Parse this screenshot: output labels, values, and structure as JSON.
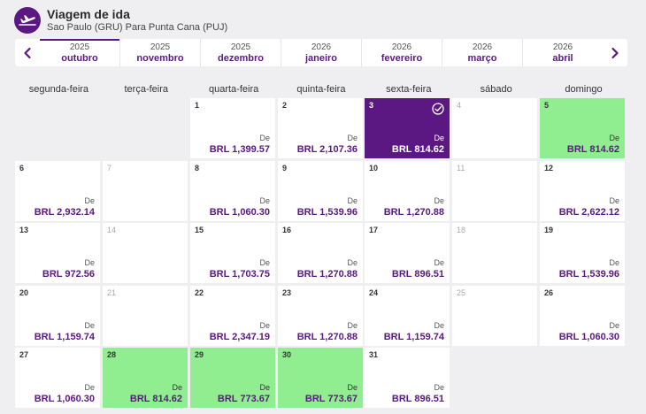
{
  "header": {
    "title": "Viagem de ida",
    "subtitle": "Sao Paulo (GRU) Para Punta Cana (PUJ)",
    "icon": "plane-departure-icon"
  },
  "colors": {
    "brand": "#5b1883",
    "cheapest": "#90ee90"
  },
  "months": [
    {
      "year": "2025",
      "name": "outubro",
      "active": true
    },
    {
      "year": "2025",
      "name": "novembro"
    },
    {
      "year": "2025",
      "name": "dezembro"
    },
    {
      "year": "2026",
      "name": "janeiro"
    },
    {
      "year": "2026",
      "name": "fevereiro"
    },
    {
      "year": "2026",
      "name": "março"
    },
    {
      "year": "2026",
      "name": "abril"
    }
  ],
  "weekdays": [
    "segunda-feira",
    "terça-feira",
    "quarta-feira",
    "quinta-feira",
    "sexta-feira",
    "sábado",
    "domingo"
  ],
  "fare_prefix": "De",
  "first_weekday_index": 2,
  "days": [
    {
      "day": "1",
      "price": "BRL 1,399.57"
    },
    {
      "day": "2",
      "price": "BRL 2,107.36"
    },
    {
      "day": "3",
      "price": "BRL 814.62",
      "selected": true
    },
    {
      "day": "4",
      "price": ""
    },
    {
      "day": "5",
      "price": "BRL 814.62",
      "cheapest": true
    },
    {
      "day": "6",
      "price": "BRL 2,932.14"
    },
    {
      "day": "7",
      "price": ""
    },
    {
      "day": "8",
      "price": "BRL 1,060.30"
    },
    {
      "day": "9",
      "price": "BRL 1,539.96"
    },
    {
      "day": "10",
      "price": "BRL 1,270.88"
    },
    {
      "day": "11",
      "price": ""
    },
    {
      "day": "12",
      "price": "BRL 2,622.12"
    },
    {
      "day": "13",
      "price": "BRL 972.56"
    },
    {
      "day": "14",
      "price": ""
    },
    {
      "day": "15",
      "price": "BRL 1,703.75"
    },
    {
      "day": "16",
      "price": "BRL 1,270.88"
    },
    {
      "day": "17",
      "price": "BRL 896.51"
    },
    {
      "day": "18",
      "price": ""
    },
    {
      "day": "19",
      "price": "BRL 1,539.96"
    },
    {
      "day": "20",
      "price": "BRL 1,159.74"
    },
    {
      "day": "21",
      "price": ""
    },
    {
      "day": "22",
      "price": "BRL 2,347.19"
    },
    {
      "day": "23",
      "price": "BRL 1,270.88"
    },
    {
      "day": "24",
      "price": "BRL 1,159.74"
    },
    {
      "day": "25",
      "price": ""
    },
    {
      "day": "26",
      "price": "BRL 1,060.30"
    },
    {
      "day": "27",
      "price": "BRL 1,060.30"
    },
    {
      "day": "28",
      "price": "BRL 814.62",
      "cheapest": true
    },
    {
      "day": "29",
      "price": "BRL 773.67",
      "cheapest": true
    },
    {
      "day": "30",
      "price": "BRL 773.67",
      "cheapest": true
    },
    {
      "day": "31",
      "price": "BRL 896.51"
    }
  ]
}
